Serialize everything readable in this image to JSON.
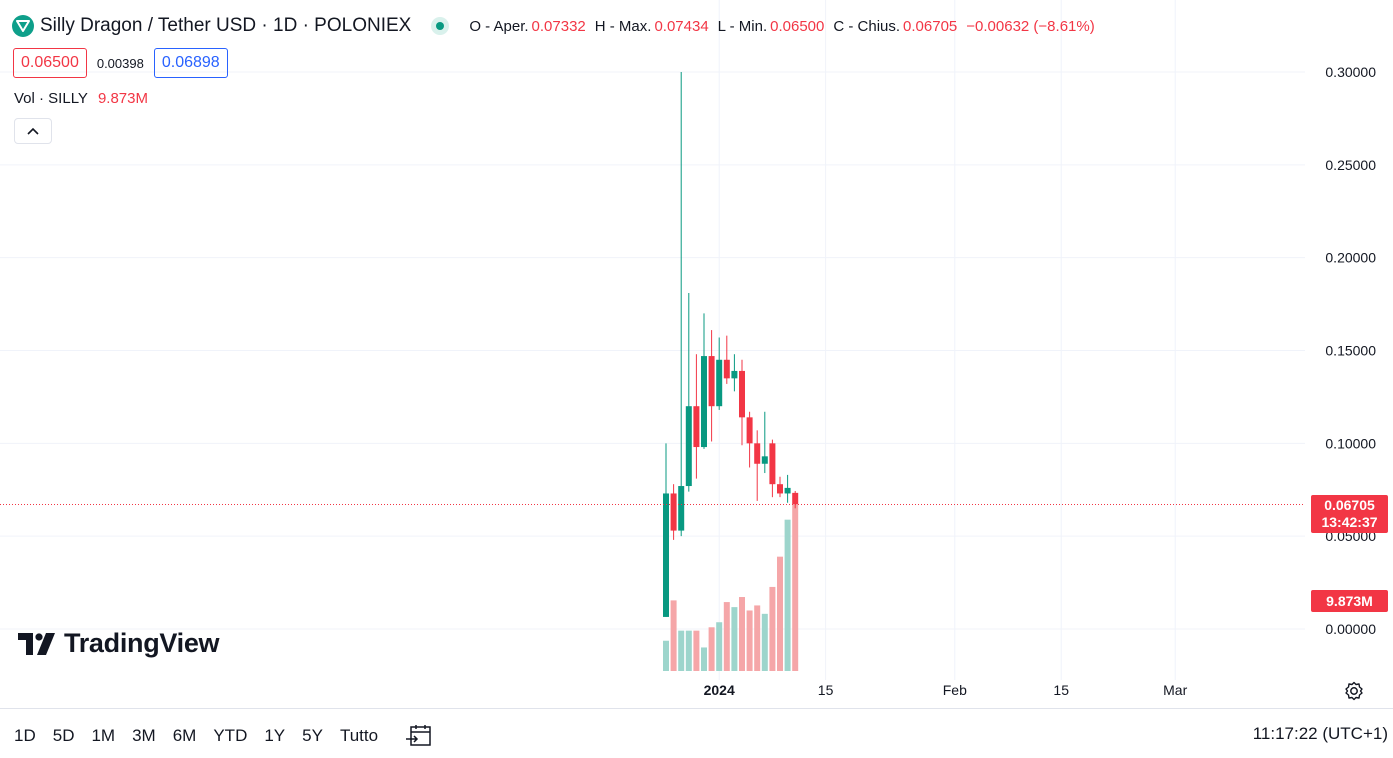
{
  "header": {
    "title": "Silly Dragon / Tether USD · 1D · POLONIEX",
    "ohlc": [
      {
        "key": "O - Aper.",
        "value": "0.07332"
      },
      {
        "key": "H - Max.",
        "value": "0.07434"
      },
      {
        "key": "L - Min.",
        "value": "0.06500"
      },
      {
        "key": "C - Chius.",
        "value": "0.06705"
      },
      {
        "key": "",
        "value": "−0.00632 (−8.61%)"
      }
    ]
  },
  "quote": {
    "bid": "0.06500",
    "spread": "0.00398",
    "ask": "0.06898"
  },
  "volume_legend": {
    "label": "Vol · SILLY",
    "value": "9.873M"
  },
  "branding": {
    "name": "TradingView"
  },
  "price_label": {
    "price": "0.06705",
    "countdown": "13:42:37"
  },
  "volume_label": "9.873M",
  "bottom_bar": {
    "ranges": [
      "1D",
      "5D",
      "1M",
      "3M",
      "6M",
      "YTD",
      "1Y",
      "5Y",
      "Tutto"
    ],
    "clock": "11:17:22 (UTC+1)"
  },
  "colors": {
    "up": "#089981",
    "down": "#f23645",
    "up_volume": "#9dd5cc",
    "down_volume": "#f5a6a8",
    "grid": "#f0f3fa",
    "brand_icon": "#0e9f8a"
  },
  "icons": [
    "silly-dragon-coin-icon",
    "collapse-chevron-up-icon",
    "calendar-goto-date-icon",
    "settings-gear-icon",
    "tradingview-logo-icon"
  ],
  "chart_data": {
    "type": "candlestick",
    "y_ticks": [
      "0.30000",
      "0.25000",
      "0.20000",
      "0.15000",
      "0.10000",
      "0.05000",
      "0.00000"
    ],
    "y_tick_values": [
      0.3,
      0.25,
      0.2,
      0.15,
      0.1,
      0.05,
      0.0
    ],
    "ylim": [
      0,
      0.3
    ],
    "x_ticks": [
      "2024",
      "15",
      "Feb",
      "15",
      "Mar"
    ],
    "x_tick_day_index": [
      7,
      21,
      38,
      52,
      67
    ],
    "last_price_line": 0.06705,
    "grid": true,
    "candles": [
      {
        "day": 0,
        "o": 0.0065,
        "h": 0.1,
        "l": 0.0065,
        "c": 0.073,
        "v": 1.8
      },
      {
        "day": 1,
        "o": 0.073,
        "h": 0.078,
        "l": 0.048,
        "c": 0.053,
        "v": 4.2
      },
      {
        "day": 2,
        "o": 0.053,
        "h": 0.3,
        "l": 0.05,
        "c": 0.077,
        "v": 2.4
      },
      {
        "day": 3,
        "o": 0.077,
        "h": 0.181,
        "l": 0.074,
        "c": 0.12,
        "v": 2.4
      },
      {
        "day": 4,
        "o": 0.12,
        "h": 0.148,
        "l": 0.081,
        "c": 0.098,
        "v": 2.4
      },
      {
        "day": 5,
        "o": 0.098,
        "h": 0.17,
        "l": 0.097,
        "c": 0.147,
        "v": 1.4
      },
      {
        "day": 6,
        "o": 0.147,
        "h": 0.161,
        "l": 0.101,
        "c": 0.12,
        "v": 2.6
      },
      {
        "day": 7,
        "o": 0.12,
        "h": 0.157,
        "l": 0.118,
        "c": 0.145,
        "v": 2.9
      },
      {
        "day": 8,
        "o": 0.145,
        "h": 0.158,
        "l": 0.132,
        "c": 0.135,
        "v": 4.1
      },
      {
        "day": 9,
        "o": 0.135,
        "h": 0.148,
        "l": 0.128,
        "c": 0.139,
        "v": 3.8
      },
      {
        "day": 10,
        "o": 0.139,
        "h": 0.145,
        "l": 0.099,
        "c": 0.114,
        "v": 4.4
      },
      {
        "day": 11,
        "o": 0.114,
        "h": 0.117,
        "l": 0.087,
        "c": 0.1,
        "v": 3.6
      },
      {
        "day": 12,
        "o": 0.1,
        "h": 0.107,
        "l": 0.069,
        "c": 0.089,
        "v": 3.9
      },
      {
        "day": 13,
        "o": 0.089,
        "h": 0.117,
        "l": 0.084,
        "c": 0.093,
        "v": 3.4
      },
      {
        "day": 14,
        "o": 0.1,
        "h": 0.102,
        "l": 0.071,
        "c": 0.078,
        "v": 5.0
      },
      {
        "day": 15,
        "o": 0.078,
        "h": 0.082,
        "l": 0.071,
        "c": 0.073,
        "v": 6.8
      },
      {
        "day": 16,
        "o": 0.073,
        "h": 0.083,
        "l": 0.068,
        "c": 0.076,
        "v": 9.0
      },
      {
        "day": 17,
        "o": 0.07332,
        "h": 0.07434,
        "l": 0.065,
        "c": 0.06705,
        "v": 9.873
      }
    ],
    "volume_scale": {
      "max": 9.873
    }
  }
}
